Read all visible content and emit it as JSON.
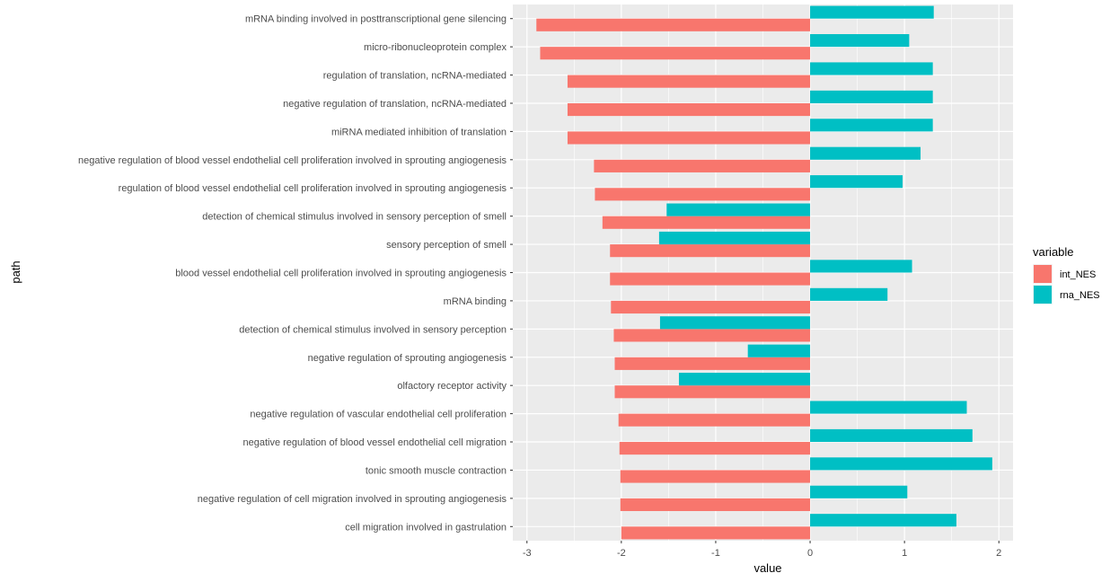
{
  "chart_data": {
    "type": "bar",
    "orientation": "horizontal",
    "xlabel": "value",
    "ylabel": "path",
    "xlim": [
      -3.15,
      2.15
    ],
    "xticks": [
      -3,
      -2,
      -1,
      0,
      1,
      2
    ],
    "grid": true,
    "legend": {
      "title": "variable",
      "position": "right"
    },
    "categories": [
      "mRNA binding involved in posttranscriptional gene silencing",
      "micro-ribonucleoprotein complex",
      "regulation of translation, ncRNA-mediated",
      "negative regulation of translation, ncRNA-mediated",
      "miRNA mediated inhibition of translation",
      "negative regulation of blood vessel endothelial cell proliferation involved in sprouting angiogenesis",
      "regulation of blood vessel endothelial cell proliferation involved in sprouting angiogenesis",
      "detection of chemical stimulus involved in sensory perception of smell",
      "sensory perception of smell",
      "blood vessel endothelial cell proliferation involved in sprouting angiogenesis",
      "mRNA binding",
      "detection of chemical stimulus involved in sensory perception",
      "negative regulation of sprouting angiogenesis",
      "olfactory receptor activity",
      "negative regulation of vascular endothelial cell proliferation",
      "negative regulation of blood vessel endothelial cell migration",
      "tonic smooth muscle contraction",
      "negative regulation of cell migration involved in sprouting angiogenesis",
      "cell migration involved in gastrulation"
    ],
    "series": [
      {
        "name": "int_NES",
        "color": "#F8766D",
        "values": [
          -2.9,
          -2.86,
          -2.57,
          -2.57,
          -2.57,
          -2.29,
          -2.28,
          -2.2,
          -2.12,
          -2.12,
          -2.11,
          -2.08,
          -2.07,
          -2.07,
          -2.03,
          -2.02,
          -2.01,
          -2.01,
          -2.0
        ]
      },
      {
        "name": "rna_NES",
        "color": "#00BFC4",
        "values": [
          1.31,
          1.05,
          1.3,
          1.3,
          1.3,
          1.17,
          0.98,
          -1.52,
          -1.6,
          1.08,
          0.82,
          -1.59,
          -0.66,
          -1.39,
          1.66,
          1.72,
          1.93,
          1.03,
          1.55
        ]
      }
    ]
  }
}
